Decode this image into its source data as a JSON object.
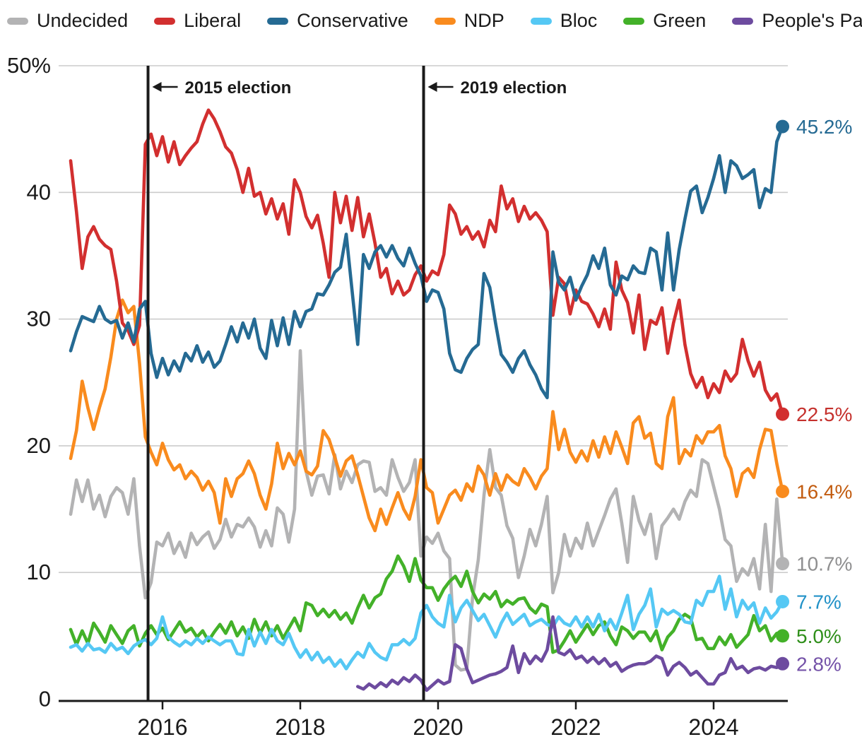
{
  "chart_data": {
    "type": "line",
    "title": "",
    "xlabel": "",
    "ylabel": "",
    "ylim": [
      0,
      50
    ],
    "xlim": [
      2014.55,
      2025.08
    ],
    "grid": "horizontal",
    "legend_position": "top",
    "y_ticks": [
      {
        "value": 50,
        "label": "50%"
      },
      {
        "value": 40,
        "label": "40"
      },
      {
        "value": 30,
        "label": "30"
      },
      {
        "value": 20,
        "label": "20"
      },
      {
        "value": 10,
        "label": "10"
      },
      {
        "value": 0,
        "label": "0"
      }
    ],
    "x_ticks": [
      {
        "value": 2016,
        "label": "2016"
      },
      {
        "value": 2018,
        "label": "2018"
      },
      {
        "value": 2020,
        "label": "2020"
      },
      {
        "value": 2022,
        "label": "2022"
      },
      {
        "value": 2024,
        "label": "2024"
      }
    ],
    "annotations": [
      {
        "x": 2015.79,
        "label": "2015 election"
      },
      {
        "x": 2019.79,
        "label": "2019 election"
      }
    ],
    "x_start": 2014.667,
    "x_step_months": 1,
    "draw_order": [
      "undecided",
      "green",
      "bloc",
      "ndp",
      "liberal",
      "conservative",
      "ppc"
    ],
    "series": [
      {
        "key": "undecided",
        "name": "Undecided",
        "color": "#b3b3b4",
        "label_color": "#8f8f90",
        "end_label": "10.7%",
        "end_value": 10.7,
        "start_index": 0,
        "values": [
          14.6,
          17.3,
          15.6,
          17.3,
          15.0,
          16.1,
          14.4,
          16.0,
          16.7,
          16.3,
          14.6,
          17.4,
          12.1,
          8.0,
          9.2,
          12.4,
          12.1,
          13.1,
          11.5,
          12.4,
          11.2,
          13.1,
          12.2,
          12.8,
          13.2,
          11.9,
          12.6,
          14.2,
          12.8,
          13.8,
          13.6,
          14.3,
          13.6,
          12.0,
          13.3,
          12.1,
          15.1,
          14.6,
          12.4,
          15.0,
          27.5,
          18.0,
          16.1,
          17.6,
          17.7,
          16.2,
          19.3,
          16.6,
          18.0,
          17.1,
          18.5,
          18.8,
          18.7,
          16.4,
          16.7,
          16.1,
          18.9,
          17.5,
          16.4,
          17.1,
          18.9,
          11.3,
          12.8,
          12.3,
          13.1,
          11.7,
          11.1,
          2.7,
          2.3,
          2.4,
          8.0,
          11.0,
          16.1,
          19.7,
          16.7,
          16.1,
          13.7,
          12.7,
          9.6,
          11.3,
          13.4,
          12.1,
          13.8,
          16.0,
          8.4,
          10.0,
          13.0,
          11.3,
          12.7,
          11.9,
          13.9,
          12.1,
          13.3,
          14.5,
          15.8,
          16.6,
          13.9,
          10.8,
          16.0,
          14.1,
          13.0,
          14.6,
          11.1,
          13.7,
          14.3,
          15.0,
          14.2,
          15.6,
          16.5,
          16.0,
          18.9,
          18.6,
          16.8,
          15.0,
          12.6,
          12.1,
          9.3,
          10.3,
          9.8,
          11.1,
          8.7,
          13.8,
          8.5,
          15.8,
          10.7
        ]
      },
      {
        "key": "liberal",
        "name": "Liberal",
        "color": "#d22f2f",
        "label_color": "#c5312d",
        "end_label": "22.5%",
        "end_value": 22.5,
        "start_index": 0,
        "values": [
          42.5,
          38.5,
          34.0,
          36.5,
          37.3,
          36.3,
          35.8,
          35.5,
          33.0,
          29.7,
          29.1,
          28.0,
          29.5,
          43.8,
          44.6,
          42.9,
          44.4,
          42.4,
          44.0,
          42.2,
          42.9,
          43.5,
          44.0,
          45.4,
          46.5,
          45.8,
          44.8,
          43.6,
          43.1,
          41.8,
          40.0,
          41.9,
          39.7,
          40.0,
          38.3,
          39.5,
          37.9,
          39.1,
          36.7,
          41.0,
          40.0,
          38.1,
          37.2,
          38.2,
          36.0,
          33.3,
          40.0,
          37.6,
          39.7,
          37.0,
          39.6,
          36.5,
          38.3,
          36.0,
          33.3,
          34.0,
          32.0,
          33.0,
          31.9,
          32.3,
          33.5,
          34.2,
          33.0,
          33.8,
          33.5,
          35.1,
          39.0,
          38.3,
          36.7,
          37.3,
          36.3,
          36.9,
          35.7,
          37.8,
          36.9,
          40.5,
          38.7,
          39.5,
          37.7,
          38.9,
          37.9,
          38.4,
          37.8,
          36.9,
          30.3,
          33.3,
          32.8,
          30.4,
          32.3,
          31.4,
          31.2,
          30.4,
          29.4,
          30.8,
          29.2,
          34.5,
          32.3,
          31.3,
          28.9,
          31.9,
          27.6,
          29.9,
          29.6,
          30.9,
          27.3,
          29.7,
          31.5,
          28.0,
          25.7,
          24.6,
          25.4,
          23.8,
          24.9,
          24.2,
          25.9,
          25.1,
          25.7,
          28.4,
          26.7,
          25.5,
          26.6,
          24.4,
          23.6,
          24.1,
          22.5
        ]
      },
      {
        "key": "conservative",
        "name": "Conservative",
        "color": "#256a93",
        "label_color": "#256a93",
        "end_label": "45.2%",
        "end_value": 45.2,
        "start_index": 0,
        "values": [
          27.5,
          29.0,
          30.2,
          30.0,
          29.8,
          31.0,
          30.0,
          29.7,
          29.9,
          28.5,
          29.7,
          28.2,
          30.8,
          31.4,
          27.3,
          25.4,
          26.9,
          25.6,
          26.7,
          25.9,
          27.3,
          26.7,
          27.9,
          26.6,
          27.4,
          26.2,
          26.7,
          28.0,
          29.4,
          28.2,
          29.7,
          28.5,
          30.0,
          27.7,
          26.9,
          29.9,
          27.9,
          30.1,
          28.0,
          30.6,
          29.4,
          30.6,
          30.8,
          32.0,
          31.9,
          32.7,
          33.7,
          34.1,
          36.7,
          32.3,
          28.0,
          35.1,
          34.0,
          35.3,
          35.8,
          34.9,
          35.8,
          34.8,
          34.2,
          35.6,
          34.4,
          33.4,
          31.4,
          32.3,
          32.1,
          30.8,
          27.3,
          26.0,
          25.8,
          26.9,
          27.6,
          28.0,
          33.6,
          32.5,
          29.7,
          27.2,
          26.6,
          25.8,
          26.9,
          27.5,
          26.4,
          25.6,
          24.5,
          23.8,
          35.3,
          32.9,
          32.3,
          33.3,
          31.5,
          32.6,
          33.5,
          35.0,
          34.0,
          35.6,
          32.7,
          31.9,
          33.4,
          33.1,
          34.2,
          33.7,
          33.6,
          35.6,
          35.3,
          32.3,
          36.8,
          32.3,
          35.5,
          37.9,
          40.1,
          40.5,
          38.4,
          39.6,
          41.1,
          42.9,
          40.0,
          42.5,
          42.1,
          41.1,
          41.4,
          41.8,
          38.8,
          40.3,
          40.0,
          44.0,
          45.2
        ]
      },
      {
        "key": "ndp",
        "name": "NDP",
        "color": "#f98b1e",
        "label_color": "#c25c10",
        "end_label": "16.4%",
        "end_value": 16.4,
        "start_index": 0,
        "values": [
          19.0,
          21.2,
          25.1,
          23.0,
          21.3,
          23.0,
          24.5,
          27.0,
          30.0,
          31.5,
          30.5,
          31.0,
          26.5,
          20.7,
          19.5,
          18.5,
          20.2,
          18.9,
          18.1,
          18.5,
          17.4,
          18.0,
          17.5,
          16.5,
          17.2,
          16.3,
          13.9,
          17.4,
          16.0,
          17.4,
          17.8,
          18.8,
          17.8,
          16.1,
          15.0,
          17.0,
          20.2,
          18.2,
          19.4,
          18.5,
          19.6,
          18.0,
          17.7,
          18.4,
          21.2,
          20.5,
          19.1,
          17.6,
          18.8,
          19.2,
          17.7,
          16.0,
          14.3,
          13.3,
          15.0,
          13.8,
          15.1,
          16.3,
          15.0,
          14.2,
          16.0,
          18.9,
          16.7,
          16.3,
          13.9,
          15.0,
          16.1,
          16.5,
          15.7,
          17.0,
          16.4,
          18.4,
          17.7,
          16.1,
          17.8,
          16.5,
          17.7,
          17.2,
          16.9,
          18.2,
          17.5,
          16.6,
          17.6,
          18.2,
          22.7,
          19.7,
          21.3,
          19.5,
          18.7,
          19.6,
          18.8,
          20.4,
          19.1,
          20.7,
          19.4,
          21.1,
          19.9,
          18.6,
          21.8,
          22.3,
          20.6,
          21.0,
          18.6,
          18.2,
          22.3,
          23.8,
          18.6,
          19.7,
          19.2,
          20.8,
          20.2,
          21.1,
          21.1,
          21.6,
          19.2,
          18.2,
          16.0,
          17.8,
          18.2,
          17.5,
          19.7,
          21.3,
          21.2,
          18.6,
          16.4
        ]
      },
      {
        "key": "bloc",
        "name": "Bloc",
        "color": "#55c8f4",
        "label_color": "#2191c7",
        "end_label": "7.7%",
        "end_value": 7.7,
        "start_index": 0,
        "values": [
          4.1,
          4.3,
          3.8,
          4.4,
          3.9,
          4.0,
          3.7,
          4.4,
          3.9,
          4.1,
          3.6,
          4.2,
          4.5,
          4.7,
          4.3,
          4.8,
          6.5,
          4.9,
          4.5,
          4.2,
          4.6,
          4.3,
          4.8,
          4.4,
          4.9,
          4.6,
          4.3,
          4.6,
          4.6,
          3.6,
          3.5,
          5.5,
          4.2,
          5.3,
          4.4,
          5.5,
          4.6,
          4.3,
          5.2,
          4.1,
          3.3,
          3.9,
          3.1,
          3.7,
          2.9,
          3.3,
          2.6,
          3.1,
          2.4,
          3.1,
          3.7,
          3.3,
          4.4,
          3.7,
          3.3,
          3.1,
          4.3,
          4.3,
          4.7,
          4.3,
          4.8,
          6.8,
          7.4,
          6.5,
          6.0,
          5.7,
          8.2,
          6.1,
          7.2,
          7.8,
          7.0,
          6.2,
          6.7,
          5.8,
          4.9,
          6.0,
          6.8,
          5.9,
          6.3,
          6.7,
          5.8,
          6.1,
          6.3,
          5.9,
          5.7,
          6.5,
          6.0,
          5.8,
          6.5,
          5.7,
          6.5,
          5.7,
          6.7,
          5.4,
          6.3,
          5.5,
          6.8,
          8.2,
          5.5,
          6.7,
          7.4,
          8.7,
          5.7,
          7.1,
          6.7,
          7.0,
          6.7,
          6.1,
          6.0,
          7.8,
          7.4,
          8.5,
          8.5,
          9.7,
          7.1,
          8.7,
          6.5,
          7.8,
          7.1,
          7.6,
          6.0,
          7.2,
          6.4,
          6.9,
          7.7
        ]
      },
      {
        "key": "green",
        "name": "Green",
        "color": "#43b129",
        "label_color": "#2f8f1a",
        "end_label": "5.0%",
        "end_value": 5.0,
        "start_index": 0,
        "values": [
          5.5,
          4.3,
          5.4,
          4.4,
          6.0,
          5.3,
          4.5,
          5.8,
          5.1,
          4.4,
          5.4,
          5.8,
          4.2,
          5.2,
          5.8,
          5.1,
          5.6,
          4.7,
          5.4,
          6.1,
          5.3,
          5.6,
          4.9,
          5.4,
          4.6,
          5.3,
          5.9,
          5.2,
          6.1,
          5.0,
          5.7,
          4.8,
          6.3,
          5.2,
          6.1,
          5.0,
          5.8,
          4.8,
          5.6,
          6.4,
          5.4,
          7.6,
          7.4,
          6.6,
          7.1,
          6.5,
          7.0,
          6.3,
          6.8,
          6.0,
          7.2,
          8.2,
          7.2,
          8.0,
          8.3,
          9.5,
          10.1,
          11.3,
          10.5,
          9.3,
          11.1,
          9.4,
          8.8,
          8.8,
          7.8,
          8.7,
          9.3,
          9.7,
          8.9,
          10.1,
          8.5,
          7.6,
          8.3,
          7.9,
          8.5,
          7.3,
          7.8,
          7.5,
          7.9,
          8.0,
          7.2,
          6.8,
          7.5,
          7.3,
          3.7,
          3.9,
          4.6,
          5.4,
          4.5,
          5.2,
          5.9,
          5.1,
          5.8,
          6.1,
          5.0,
          4.3,
          5.7,
          5.4,
          4.8,
          5.3,
          5.3,
          4.6,
          5.4,
          3.9,
          4.9,
          5.4,
          6.3,
          6.7,
          6.4,
          4.7,
          4.8,
          4.0,
          4.0,
          4.9,
          4.3,
          5.1,
          4.1,
          4.6,
          5.1,
          6.6,
          5.4,
          5.8,
          4.6,
          5.2,
          5.0
        ]
      },
      {
        "key": "ppc",
        "name": "People's Party",
        "color": "#6d4b9f",
        "label_color": "#7452a8",
        "end_label": "2.8%",
        "end_value": 2.8,
        "start_index": 50,
        "values": [
          1.0,
          0.8,
          1.2,
          0.9,
          1.3,
          1.0,
          1.5,
          1.2,
          1.7,
          1.4,
          1.9,
          1.5,
          0.7,
          1.1,
          1.5,
          1.2,
          1.4,
          4.3,
          4.0,
          2.4,
          1.3,
          1.5,
          1.7,
          1.9,
          2.0,
          2.2,
          2.5,
          4.2,
          2.1,
          3.6,
          2.8,
          3.4,
          3.0,
          3.9,
          6.5,
          3.7,
          3.5,
          3.9,
          3.2,
          3.4,
          2.9,
          3.3,
          2.8,
          3.2,
          2.6,
          2.9,
          2.2,
          2.5,
          2.7,
          2.8,
          2.8,
          3.0,
          3.4,
          3.2,
          1.9,
          2.6,
          2.9,
          2.5,
          1.9,
          2.2,
          1.7,
          1.2,
          1.2,
          1.9,
          2.1,
          3.2,
          2.4,
          2.6,
          2.1,
          2.4,
          2.5,
          2.3,
          2.6,
          2.5,
          2.8
        ]
      }
    ],
    "colors": {
      "axis_text": "#1a1a1a",
      "gridline": "#cccccc",
      "axis_line": "#1a1a1a",
      "annotation_line": "#1a1a1a",
      "annotation_text": "#1a1a1a"
    }
  }
}
